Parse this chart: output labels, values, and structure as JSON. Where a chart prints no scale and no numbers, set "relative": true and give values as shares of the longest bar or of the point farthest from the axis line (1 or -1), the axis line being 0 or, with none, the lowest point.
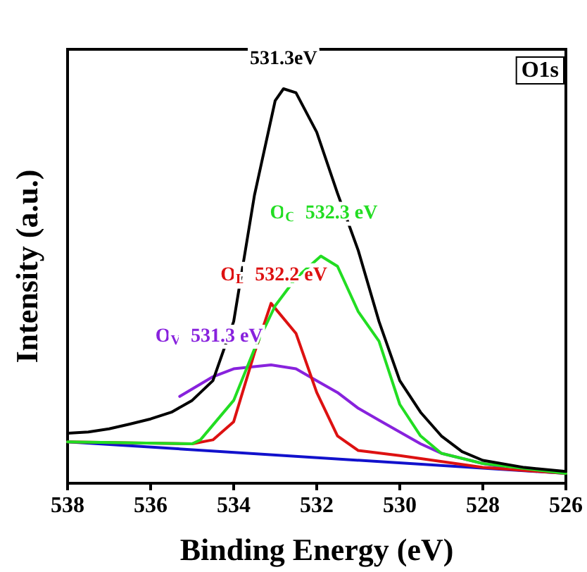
{
  "chart_data": {
    "type": "line",
    "relative": true,
    "xlabel": "Binding Energy (eV)",
    "ylabel": "Intensity (a.u.)",
    "xlim": [
      538,
      526
    ],
    "xticks": [
      538,
      536,
      534,
      532,
      530,
      528,
      526
    ],
    "grid": false,
    "marker": "none",
    "line_style": "solid",
    "series": [
      {
        "color": "#000000",
        "x": [
          538,
          537.5,
          537,
          536.5,
          536,
          535.5,
          535,
          534.5,
          534,
          533.5,
          533,
          532.8,
          532.5,
          532,
          531.5,
          531,
          530.5,
          530,
          529.5,
          529,
          528.5,
          528,
          527,
          526
        ],
        "values": [
          0.127,
          0.13,
          0.138,
          0.15,
          0.163,
          0.18,
          0.21,
          0.26,
          0.41,
          0.73,
          0.97,
          1.0,
          0.99,
          0.89,
          0.735,
          0.59,
          0.41,
          0.26,
          0.18,
          0.12,
          0.08,
          0.058,
          0.04,
          0.03
        ]
      },
      {
        "color": "#22dd22",
        "x": [
          538,
          535,
          534.8,
          534,
          533.5,
          533,
          532.5,
          531.9,
          531.5,
          531,
          530.5,
          530,
          529.5,
          529,
          528,
          526
        ],
        "values": [
          0.105,
          0.1,
          0.11,
          0.21,
          0.34,
          0.45,
          0.52,
          0.576,
          0.55,
          0.435,
          0.36,
          0.2,
          0.12,
          0.076,
          0.05,
          0.025
        ]
      },
      {
        "color": "#dd1111",
        "x": [
          538,
          535,
          534.5,
          534,
          533.5,
          533.1,
          532.5,
          532,
          531.5,
          531,
          530,
          528,
          526
        ],
        "values": [
          0.105,
          0.1,
          0.11,
          0.156,
          0.33,
          0.456,
          0.38,
          0.23,
          0.12,
          0.083,
          0.07,
          0.04,
          0.025
        ]
      },
      {
        "color": "#8822dd",
        "x": [
          535.3,
          534.5,
          534,
          533.1,
          532.5,
          532,
          531.5,
          531,
          530.5,
          530,
          529.5,
          529,
          528,
          527.5
        ],
        "values": [
          0.22,
          0.27,
          0.29,
          0.3,
          0.29,
          0.26,
          0.23,
          0.19,
          0.16,
          0.13,
          0.1,
          0.076,
          0.05,
          0.04
        ]
      },
      {
        "color": "#1111cc",
        "x": [
          538,
          526
        ],
        "values": [
          0.105,
          0.025
        ]
      }
    ],
    "annotations": [
      {
        "text": "531.3eV",
        "x": 532.8,
        "y": 1.0
      },
      {
        "text": "O$_{C}$  532.3 eV",
        "x": 531.9,
        "y": 0.576
      },
      {
        "text": "O$_{L}$  532.2 eV",
        "x": 533.1,
        "y": 0.456
      },
      {
        "text": "O$_{V}$  531.3 eV",
        "x": 533.1,
        "y": 0.3
      },
      "O1s"
    ]
  }
}
